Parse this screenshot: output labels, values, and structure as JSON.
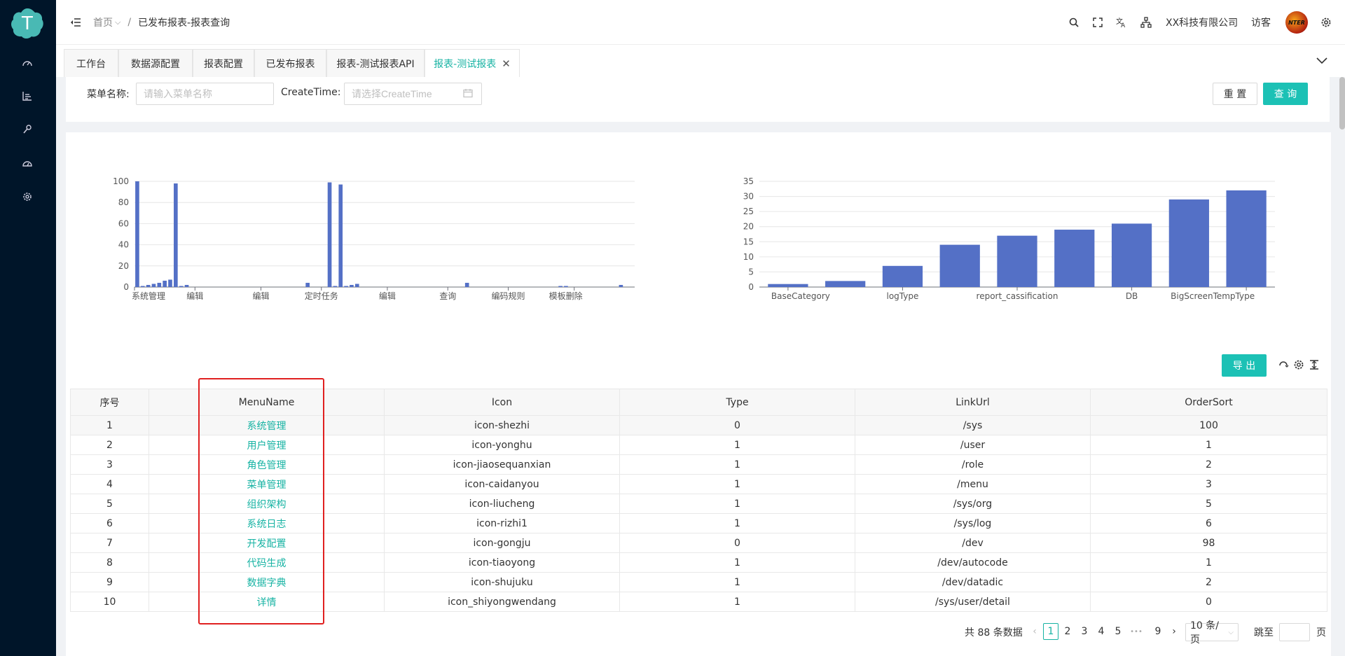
{
  "header": {
    "breadcrumb": {
      "home": "首页",
      "separator": "/",
      "current": "已发布报表-报表查询"
    },
    "company": "XX科技有限公司",
    "user": "访客",
    "avatar_text": "NTER",
    "icons": [
      "menu-fold-icon",
      "search-icon",
      "fullscreen-icon",
      "translate-icon",
      "sitemap-icon",
      "settings-icon"
    ]
  },
  "sidebar": {
    "icons": [
      "dashboard-icon",
      "chart-icon",
      "tool-icon",
      "gauge-icon",
      "gear-icon"
    ]
  },
  "tabs": [
    {
      "label": "工作台"
    },
    {
      "label": "数据源配置"
    },
    {
      "label": "报表配置"
    },
    {
      "label": "已发布报表"
    },
    {
      "label": "报表-测试报表API"
    },
    {
      "label": "报表-测试报表",
      "active": true,
      "close": "✕"
    }
  ],
  "search": {
    "menu_name_label": "菜单名称:",
    "menu_name_placeholder": "请输入菜单名称",
    "createtime_label": "CreateTime:",
    "createtime_placeholder": "请选择CreateTime",
    "reset_label": "重 置",
    "query_label": "查 询"
  },
  "chart_data": [
    {
      "type": "bar",
      "ylim": [
        0,
        100
      ],
      "yticks": [
        0,
        20,
        40,
        60,
        80,
        100
      ],
      "tick_labels": [
        "系统管理",
        "编辑",
        "编辑",
        "定时任务",
        "编辑",
        "查询",
        "编码规则",
        "模板删除"
      ],
      "values": [
        100,
        1,
        2,
        3,
        4,
        6,
        7,
        98,
        1,
        2,
        0,
        0,
        0,
        0,
        0,
        0,
        0,
        0,
        0,
        0,
        0,
        0,
        0,
        0,
        0,
        0,
        0,
        0,
        0,
        0,
        0,
        4,
        0,
        0,
        0,
        99,
        1,
        97,
        1,
        2,
        3,
        0,
        0,
        0,
        0,
        0,
        0,
        0,
        0,
        0,
        0,
        0,
        0,
        0,
        0,
        0,
        0,
        0,
        0,
        0,
        4,
        0,
        0,
        0,
        0,
        0,
        0,
        0,
        0,
        0,
        0,
        0,
        0,
        0,
        0,
        0,
        0,
        1,
        1,
        0,
        0,
        0,
        0,
        0,
        0,
        0,
        0,
        0,
        2,
        0,
        0
      ],
      "color": "#5470c6"
    },
    {
      "type": "bar",
      "ylim": [
        0,
        35
      ],
      "yticks": [
        0,
        5,
        10,
        15,
        20,
        25,
        30,
        35
      ],
      "tick_labels": [
        "BaseCategory",
        "logType",
        "report_cassification",
        "DB",
        "BigScreenTempType"
      ],
      "values": [
        1,
        2,
        7,
        14,
        17,
        19,
        21,
        29,
        32
      ],
      "color": "#5470c6"
    }
  ],
  "table": {
    "export_label": "导 出",
    "columns": [
      "序号",
      "MenuName",
      "Icon",
      "Type",
      "LinkUrl",
      "OrderSort"
    ],
    "rows": [
      [
        "1",
        "系统管理",
        "icon-shezhi",
        "0",
        "/sys",
        "100"
      ],
      [
        "2",
        "用户管理",
        "icon-yonghu",
        "1",
        "/user",
        "1"
      ],
      [
        "3",
        "角色管理",
        "icon-jiaosequanxian",
        "1",
        "/role",
        "2"
      ],
      [
        "4",
        "菜单管理",
        "icon-caidanyou",
        "1",
        "/menu",
        "3"
      ],
      [
        "5",
        "组织架构",
        "icon-liucheng",
        "1",
        "/sys/org",
        "5"
      ],
      [
        "6",
        "系统日志",
        "icon-rizhi1",
        "1",
        "/sys/log",
        "6"
      ],
      [
        "7",
        "开发配置",
        "icon-gongju",
        "0",
        "/dev",
        "98"
      ],
      [
        "8",
        "代码生成",
        "icon-tiaoyong",
        "1",
        "/dev/autocode",
        "1"
      ],
      [
        "9",
        "数据字典",
        "icon-shujuku",
        "1",
        "/dev/datadic",
        "2"
      ],
      [
        "10",
        "详情",
        "icon_shiyongwendang",
        "1",
        "/sys/user/detail",
        "0"
      ]
    ]
  },
  "pagination": {
    "total_text": "共 88 条数据",
    "prev": "‹",
    "pages": [
      "1",
      "2",
      "3",
      "4",
      "5"
    ],
    "ellipsis": "•••",
    "last": "9",
    "next": "›",
    "page_size": "10 条/页",
    "goto_label": "跳至",
    "page_suffix": "页"
  }
}
